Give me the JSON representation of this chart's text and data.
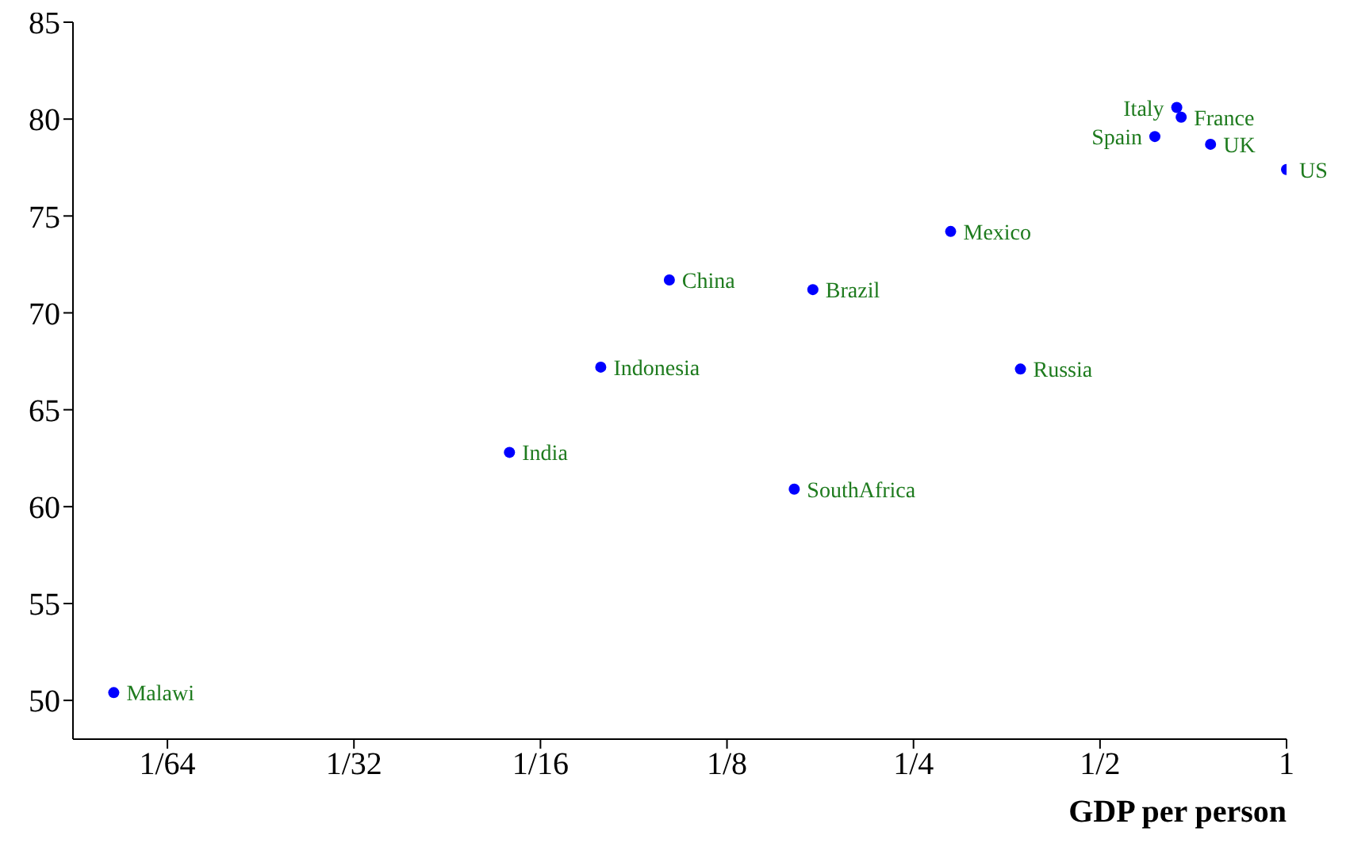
{
  "chart_data": {
    "type": "scatter",
    "xlabel": "GDP per person",
    "log": "x",
    "x": [
      0.0128,
      0.0557,
      0.0782,
      0.1009,
      0.172,
      0.1605,
      0.287,
      0.372,
      0.613,
      0.665,
      0.676,
      0.754,
      1.0
    ],
    "values": [
      50.4,
      62.8,
      67.2,
      71.7,
      71.2,
      60.9,
      74.2,
      67.1,
      79.1,
      80.6,
      80.1,
      78.7,
      77.4
    ],
    "color": "#0000ff",
    "marker": "circle",
    "grid": false,
    "legend": false,
    "xlim": [
      0.011,
      1
    ],
    "xticks": [
      {
        "value": 0.015625,
        "label": "1/64"
      },
      {
        "value": 0.03125,
        "label": "1/32"
      },
      {
        "value": 0.0625,
        "label": "1/16"
      },
      {
        "value": 0.125,
        "label": "1/8"
      },
      {
        "value": 0.25,
        "label": "1/4"
      },
      {
        "value": 0.5,
        "label": "1/2"
      },
      1
    ],
    "ylim": [
      48,
      85
    ],
    "yticks": [
      50,
      55,
      60,
      65,
      70,
      75,
      80,
      85
    ],
    "annotations": [
      {
        "text": "Malawi",
        "x": 0.0128,
        "y": 50.4
      },
      {
        "text": "India",
        "x": 0.0557,
        "y": 62.8
      },
      {
        "text": "Indonesia",
        "x": 0.0782,
        "y": 67.2
      },
      {
        "text": "China",
        "x": 0.1009,
        "y": 71.7
      },
      {
        "text": "Brazil",
        "x": 0.172,
        "y": 71.2
      },
      {
        "text": "SouthAfrica",
        "x": 0.1605,
        "y": 60.9
      },
      {
        "text": "Mexico",
        "x": 0.287,
        "y": 74.2
      },
      {
        "text": "Russia",
        "x": 0.372,
        "y": 67.1
      },
      {
        "text": "Spain",
        "x": 0.613,
        "y": 79.1
      },
      {
        "text": "Italy",
        "x": 0.665,
        "y": 80.6
      },
      {
        "text": "France",
        "x": 0.676,
        "y": 80.1
      },
      {
        "text": "UK",
        "x": 0.754,
        "y": 78.7
      },
      {
        "text": "US",
        "x": 1.0,
        "y": 77.4
      }
    ]
  }
}
